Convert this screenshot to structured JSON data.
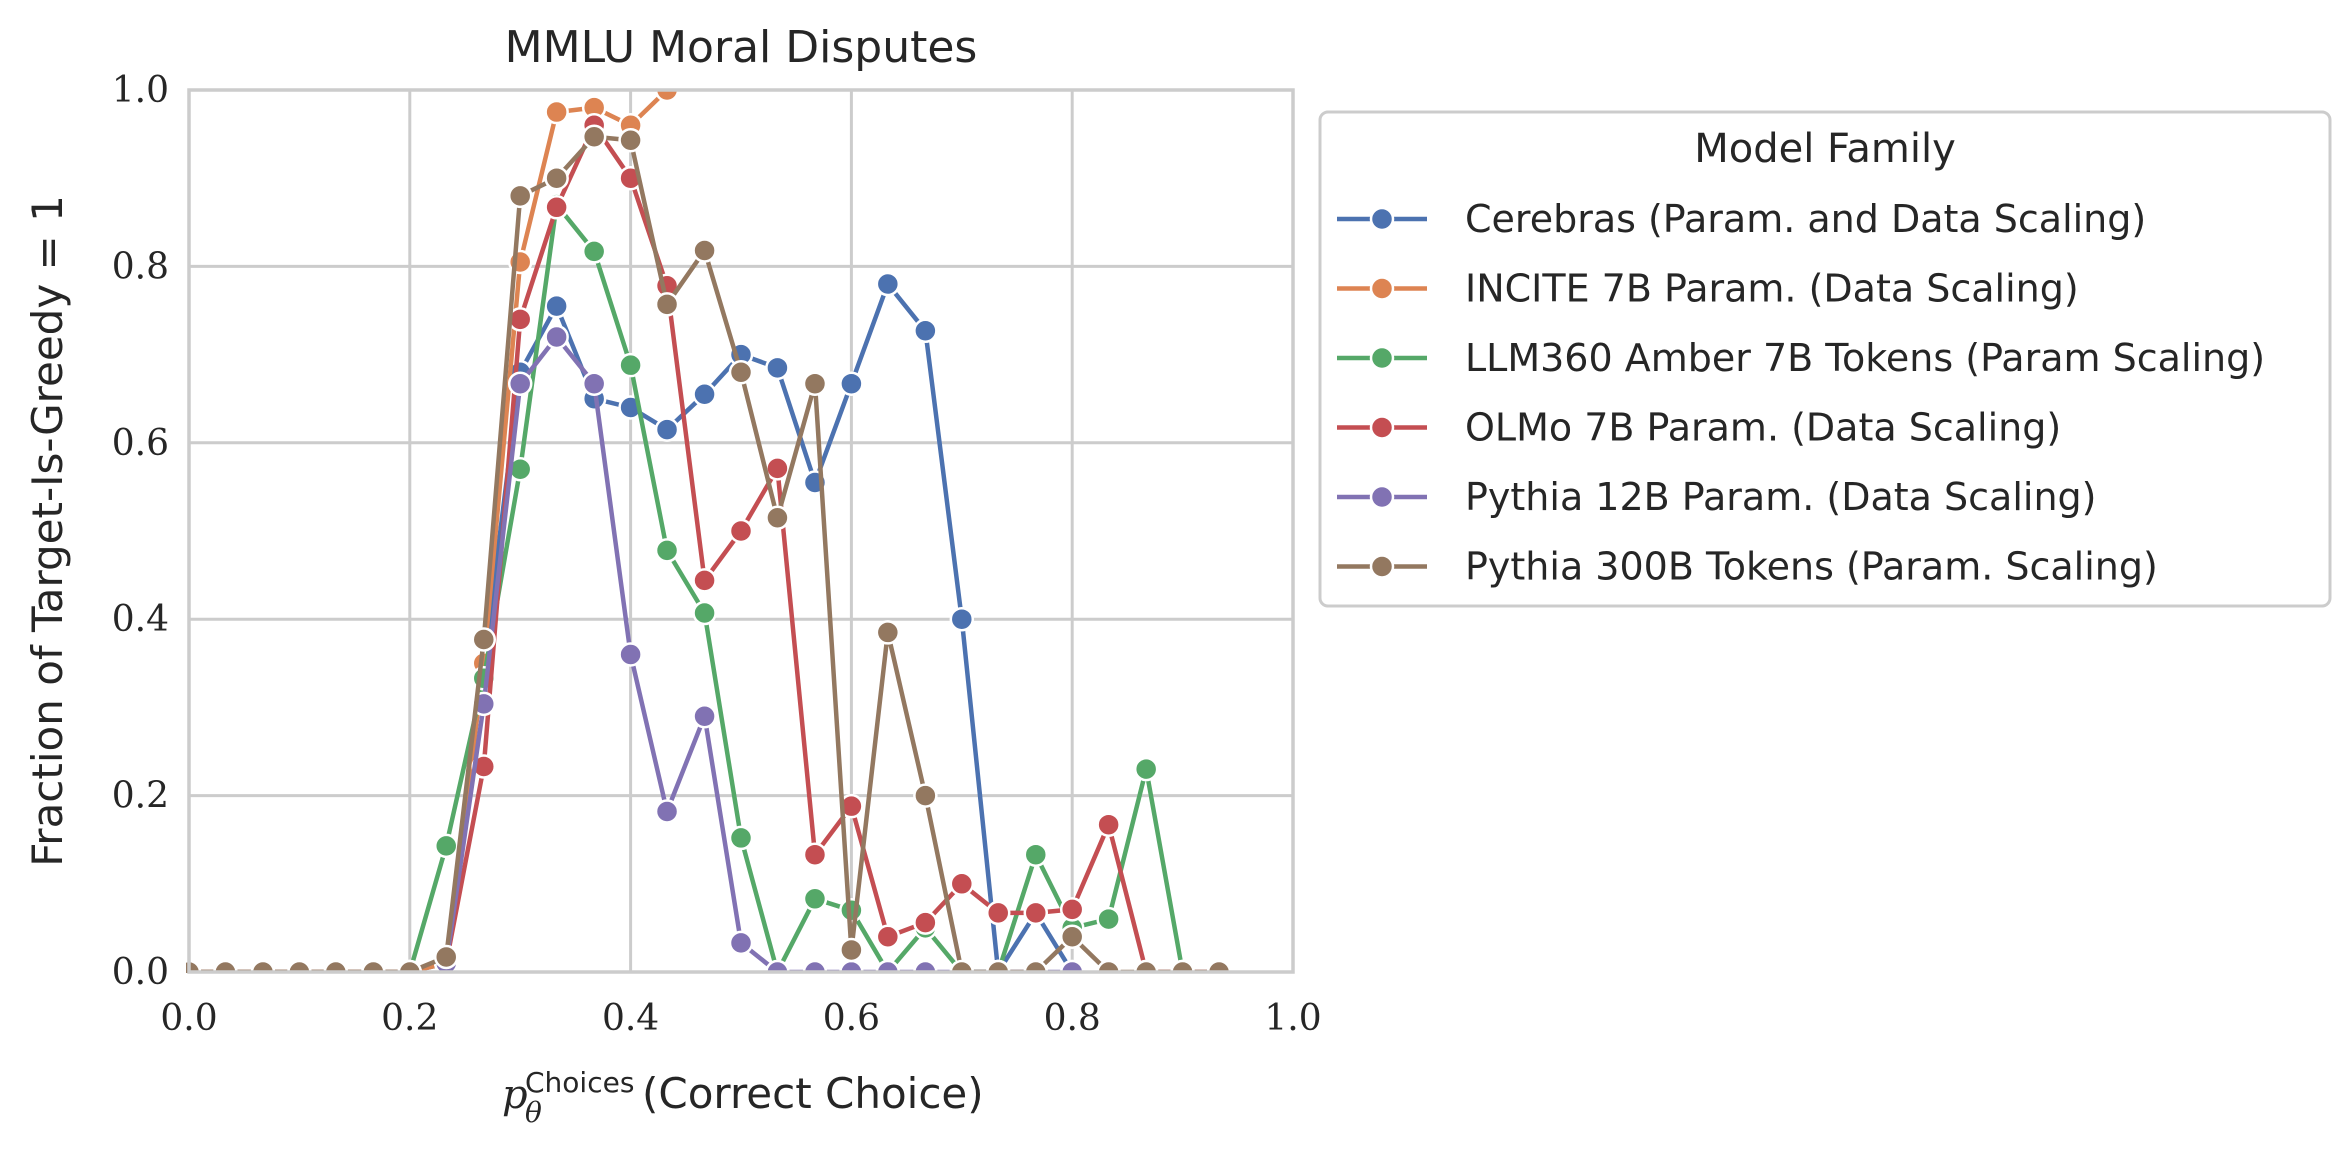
{
  "chart_data": {
    "type": "line",
    "title": "MMLU Moral Disputes",
    "xlabel": {
      "math": "p",
      "sub": "θ",
      "sup": "Choices",
      "text": "(Correct Choice)"
    },
    "ylabel": "Fraction of Target-Is-Greedy = 1",
    "xlim": [
      0.0,
      1.0
    ],
    "ylim": [
      0.0,
      1.0
    ],
    "xticks": [
      "0.0",
      "0.2",
      "0.4",
      "0.6",
      "0.8",
      "1.0"
    ],
    "yticks": [
      "0.0",
      "0.2",
      "0.4",
      "0.6",
      "0.8",
      "1.0"
    ],
    "grid": true,
    "legend": {
      "title": "Model Family",
      "placement": "outside-right"
    },
    "series": [
      {
        "name": "Cerebras (Param. and Data Scaling)",
        "color": "#4c72b0",
        "points": [
          [
            0.0,
            0.0
          ],
          [
            0.033,
            0.0
          ],
          [
            0.067,
            0.0
          ],
          [
            0.1,
            0.0
          ],
          [
            0.133,
            0.0
          ],
          [
            0.167,
            0.0
          ],
          [
            0.2,
            0.0
          ],
          [
            0.233,
            0.01
          ],
          [
            0.267,
            0.35
          ],
          [
            0.3,
            0.68
          ],
          [
            0.333,
            0.755
          ],
          [
            0.367,
            0.65
          ],
          [
            0.4,
            0.64
          ],
          [
            0.433,
            0.615
          ],
          [
            0.467,
            0.655
          ],
          [
            0.5,
            0.7
          ],
          [
            0.533,
            0.685
          ],
          [
            0.567,
            0.555
          ],
          [
            0.6,
            0.667
          ],
          [
            0.633,
            0.78
          ],
          [
            0.667,
            0.727
          ],
          [
            0.7,
            0.4
          ],
          [
            0.733,
            0.0
          ],
          [
            0.767,
            0.067
          ],
          [
            0.8,
            0.0
          ]
        ]
      },
      {
        "name": "INCITE 7B Param. (Data Scaling)",
        "color": "#dd8452",
        "points": [
          [
            0.0,
            0.0
          ],
          [
            0.033,
            0.0
          ],
          [
            0.067,
            0.0
          ],
          [
            0.1,
            0.0
          ],
          [
            0.133,
            0.0
          ],
          [
            0.167,
            0.0
          ],
          [
            0.2,
            0.0
          ],
          [
            0.233,
            0.01
          ],
          [
            0.267,
            0.35
          ],
          [
            0.3,
            0.805
          ],
          [
            0.333,
            0.975
          ],
          [
            0.367,
            0.98
          ],
          [
            0.4,
            0.96
          ],
          [
            0.433,
            1.0
          ]
        ]
      },
      {
        "name": "LLM360 Amber 7B Tokens (Param Scaling)",
        "color": "#55a868",
        "points": [
          [
            0.2,
            0.0
          ],
          [
            0.233,
            0.143
          ],
          [
            0.267,
            0.333
          ],
          [
            0.3,
            0.57
          ],
          [
            0.333,
            0.87
          ],
          [
            0.367,
            0.817
          ],
          [
            0.4,
            0.688
          ],
          [
            0.433,
            0.478
          ],
          [
            0.467,
            0.407
          ],
          [
            0.5,
            0.152
          ],
          [
            0.533,
            0.0
          ],
          [
            0.567,
            0.083
          ],
          [
            0.6,
            0.07
          ],
          [
            0.633,
            0.0
          ],
          [
            0.667,
            0.05
          ],
          [
            0.7,
            0.0
          ],
          [
            0.733,
            0.0
          ],
          [
            0.767,
            0.133
          ],
          [
            0.8,
            0.05
          ],
          [
            0.833,
            0.06
          ],
          [
            0.867,
            0.23
          ],
          [
            0.9,
            0.0
          ]
        ]
      },
      {
        "name": "OLMo 7B Param. (Data Scaling)",
        "color": "#c44e52",
        "points": [
          [
            0.233,
            0.01
          ],
          [
            0.267,
            0.233
          ],
          [
            0.3,
            0.74
          ],
          [
            0.333,
            0.867
          ],
          [
            0.367,
            0.96
          ],
          [
            0.4,
            0.9
          ],
          [
            0.433,
            0.778
          ],
          [
            0.467,
            0.444
          ],
          [
            0.5,
            0.5
          ],
          [
            0.533,
            0.571
          ],
          [
            0.567,
            0.133
          ],
          [
            0.6,
            0.188
          ],
          [
            0.633,
            0.04
          ],
          [
            0.667,
            0.056
          ],
          [
            0.7,
            0.1
          ],
          [
            0.733,
            0.067
          ],
          [
            0.767,
            0.067
          ],
          [
            0.8,
            0.071
          ],
          [
            0.833,
            0.167
          ],
          [
            0.867,
            0.0
          ],
          [
            0.9,
            0.0
          ],
          [
            0.933,
            0.0
          ]
        ]
      },
      {
        "name": "Pythia 12B Param. (Data Scaling)",
        "color": "#8172b3",
        "points": [
          [
            0.233,
            0.01
          ],
          [
            0.267,
            0.304
          ],
          [
            0.3,
            0.667
          ],
          [
            0.333,
            0.72
          ],
          [
            0.367,
            0.667
          ],
          [
            0.4,
            0.36
          ],
          [
            0.433,
            0.182
          ],
          [
            0.467,
            0.29
          ],
          [
            0.5,
            0.033
          ],
          [
            0.533,
            0.0
          ],
          [
            0.567,
            0.0
          ],
          [
            0.6,
            0.0
          ],
          [
            0.633,
            0.0
          ],
          [
            0.667,
            0.0
          ],
          [
            0.7,
            0.0
          ],
          [
            0.733,
            0.0
          ],
          [
            0.767,
            0.0
          ],
          [
            0.8,
            0.0
          ]
        ]
      },
      {
        "name": "Pythia 300B Tokens (Param. Scaling)",
        "color": "#937860",
        "points": [
          [
            0.0,
            0.0
          ],
          [
            0.033,
            0.0
          ],
          [
            0.067,
            0.0
          ],
          [
            0.1,
            0.0
          ],
          [
            0.133,
            0.0
          ],
          [
            0.167,
            0.0
          ],
          [
            0.2,
            0.0
          ],
          [
            0.233,
            0.017
          ],
          [
            0.267,
            0.377
          ],
          [
            0.3,
            0.88
          ],
          [
            0.333,
            0.9
          ],
          [
            0.367,
            0.947
          ],
          [
            0.4,
            0.943
          ],
          [
            0.433,
            0.757
          ],
          [
            0.467,
            0.818
          ],
          [
            0.5,
            0.68
          ],
          [
            0.533,
            0.515
          ],
          [
            0.567,
            0.667
          ],
          [
            0.6,
            0.025
          ],
          [
            0.633,
            0.385
          ],
          [
            0.667,
            0.2
          ],
          [
            0.7,
            0.0
          ],
          [
            0.733,
            0.0
          ],
          [
            0.767,
            0.0
          ],
          [
            0.8,
            0.04
          ],
          [
            0.833,
            0.0
          ],
          [
            0.867,
            0.0
          ],
          [
            0.9,
            0.0
          ],
          [
            0.933,
            0.0
          ]
        ]
      }
    ]
  }
}
